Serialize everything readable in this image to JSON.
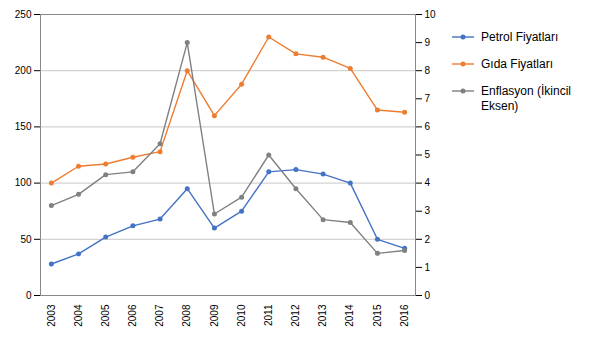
{
  "chart_data": {
    "type": "line",
    "x": [
      2003,
      2004,
      2005,
      2006,
      2007,
      2008,
      2009,
      2010,
      2011,
      2012,
      2013,
      2014,
      2015,
      2016
    ],
    "series": [
      {
        "name": "Petrol Fiyatları",
        "color": "#4472c4",
        "marker": "circle",
        "values": [
          28,
          37,
          52,
          62,
          68,
          95,
          60,
          75,
          110,
          112,
          108,
          100,
          50,
          42
        ]
      },
      {
        "name": "Gıda Fiyatları",
        "color": "#ed7d31",
        "marker": "circle",
        "values": [
          100,
          115,
          117,
          123,
          128,
          200,
          160,
          188,
          230,
          215,
          212,
          202,
          165,
          163
        ]
      },
      {
        "name": "Enflasyon (İkincil\nEksen)",
        "color": "#808080",
        "marker": "circle",
        "axis": "y2",
        "values": [
          3.2,
          3.6,
          4.3,
          4.4,
          5.4,
          9.0,
          2.9,
          3.5,
          5.0,
          3.8,
          2.7,
          2.6,
          1.5,
          1.6
        ]
      }
    ],
    "xlim": [
      2002.6,
      2016.4
    ],
    "xticks": [
      2003,
      2004,
      2005,
      2006,
      2007,
      2008,
      2009,
      2010,
      2011,
      2012,
      2013,
      2014,
      2015,
      2016
    ],
    "ylim": [
      0,
      250
    ],
    "yticks": [
      0,
      50,
      100,
      150,
      200,
      250
    ],
    "y2lim": [
      0,
      10
    ],
    "y2ticks": [
      0,
      1,
      2,
      3,
      4,
      5,
      6,
      7,
      8,
      9,
      10
    ],
    "grid": true,
    "legend": "right"
  }
}
